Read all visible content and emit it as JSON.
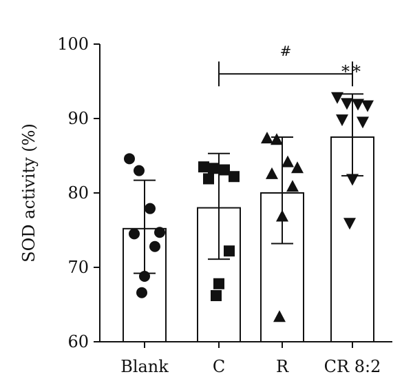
{
  "chart_data": {
    "type": "bar",
    "ylabel": "SOD activity (%)",
    "xlabel": "",
    "ylim": [
      60,
      100
    ],
    "yticks": [
      60,
      70,
      80,
      90,
      100
    ],
    "grid": false,
    "categories": [
      {
        "name": "Blank",
        "mean": 75.2,
        "sd_upper": 81.7,
        "sd_lower": 69.2,
        "marker": "circle",
        "points": [
          84.6,
          83.0,
          77.9,
          74.7,
          74.5,
          72.8,
          68.8,
          66.6
        ]
      },
      {
        "name": "C",
        "mean": 78.0,
        "sd_upper": 85.3,
        "sd_lower": 71.1,
        "marker": "square",
        "points": [
          83.5,
          83.3,
          83.1,
          82.2,
          81.9,
          72.2,
          67.8,
          66.2
        ]
      },
      {
        "name": "R",
        "mean": 80.0,
        "sd_upper": 87.5,
        "sd_lower": 73.2,
        "marker": "triangle-up",
        "points": [
          87.4,
          87.2,
          84.2,
          83.4,
          82.6,
          80.9,
          76.9,
          63.4
        ]
      },
      {
        "name": "CR 8:2",
        "mean": 87.5,
        "sd_upper": 93.3,
        "sd_lower": 82.3,
        "marker": "triangle-down",
        "points": [
          92.8,
          92.0,
          91.9,
          91.7,
          89.8,
          89.5,
          81.8,
          75.9
        ]
      }
    ],
    "annotations": {
      "bracket": {
        "from": "C",
        "to": "CR 8:2",
        "y": 96.0,
        "label": "#"
      },
      "stars": {
        "category": "CR 8:2",
        "label": "**"
      }
    }
  }
}
